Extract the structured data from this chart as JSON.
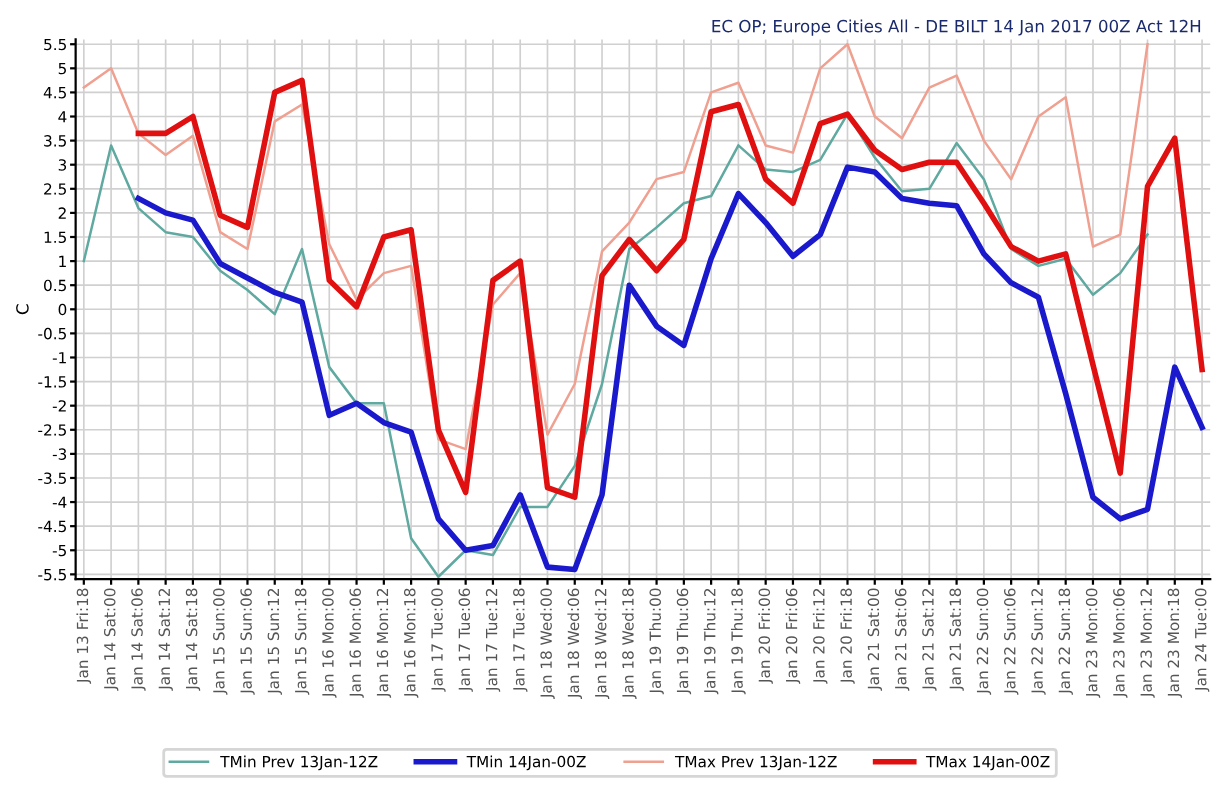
{
  "chart_data": {
    "type": "line",
    "title": "EC OP; Europe Cities All - DE BILT 14 Jan 2017 00Z Act 12H",
    "ylabel": "C",
    "categories": [
      "Jan 13 Fri:18",
      "Jan 14 Sat:00",
      "Jan 14 Sat:06",
      "Jan 14 Sat:12",
      "Jan 14 Sat:18",
      "Jan 15 Sun:00",
      "Jan 15 Sun:06",
      "Jan 15 Sun:12",
      "Jan 15 Sun:18",
      "Jan 16 Mon:00",
      "Jan 16 Mon:06",
      "Jan 16 Mon:12",
      "Jan 16 Mon:18",
      "Jan 17 Tue:00",
      "Jan 17 Tue:06",
      "Jan 17 Tue:12",
      "Jan 17 Tue:18",
      "Jan 18 Wed:00",
      "Jan 18 Wed:06",
      "Jan 18 Wed:12",
      "Jan 18 Wed:18",
      "Jan 19 Thu:00",
      "Jan 19 Thu:06",
      "Jan 19 Thu:12",
      "Jan 19 Thu:18",
      "Jan 20 Fri:00",
      "Jan 20 Fri:06",
      "Jan 20 Fri:12",
      "Jan 20 Fri:18",
      "Jan 21 Sat:00",
      "Jan 21 Sat:06",
      "Jan 21 Sat:12",
      "Jan 21 Sat:18",
      "Jan 22 Sun:00",
      "Jan 22 Sun:06",
      "Jan 22 Sun:12",
      "Jan 22 Sun:18",
      "Jan 23 Mon:00",
      "Jan 23 Mon:06",
      "Jan 23 Mon:12",
      "Jan 23 Mon:18",
      "Jan 24 Tue:00"
    ],
    "series": [
      {
        "name": "TMin Prev 13Jan-12Z",
        "color": "#5fa9a0",
        "values": [
          1.0,
          3.4,
          2.1,
          1.6,
          1.5,
          0.8,
          0.4,
          -0.1,
          1.25,
          -1.2,
          -1.95,
          -1.95,
          -4.75,
          -5.55,
          -5.0,
          -5.1,
          -4.1,
          -4.1,
          -3.25,
          -1.55,
          1.25,
          1.7,
          2.2,
          2.35,
          3.4,
          2.9,
          2.85,
          3.1,
          4.05,
          3.15,
          2.45,
          2.5,
          3.45,
          2.7,
          1.25,
          0.9,
          1.05,
          0.3,
          0.75,
          1.55,
          null,
          null
        ]
      },
      {
        "name": "TMin 14Jan-00Z",
        "color": "#1a1acc",
        "values": [
          null,
          null,
          2.3,
          2.0,
          1.85,
          0.95,
          0.65,
          0.35,
          0.15,
          -2.2,
          -1.95,
          -2.35,
          -2.55,
          -4.35,
          -5.0,
          -4.9,
          -3.85,
          -5.35,
          -5.4,
          -3.85,
          0.5,
          -0.35,
          -0.75,
          1.05,
          2.4,
          1.8,
          1.1,
          1.55,
          2.95,
          2.85,
          2.3,
          2.2,
          2.15,
          1.15,
          0.55,
          0.25,
          -1.75,
          -3.9,
          -4.35,
          -4.15,
          -1.2,
          -2.45
        ]
      },
      {
        "name": "TMax Prev 13Jan-12Z",
        "color": "#f0a090",
        "values": [
          4.6,
          5.0,
          3.65,
          3.2,
          3.6,
          1.6,
          1.25,
          3.9,
          4.25,
          1.35,
          0.2,
          0.75,
          0.9,
          -2.7,
          -2.9,
          0.1,
          0.75,
          -2.6,
          -1.55,
          1.2,
          1.8,
          2.7,
          2.85,
          4.5,
          4.7,
          3.4,
          3.25,
          5.0,
          5.5,
          4.0,
          3.55,
          4.6,
          4.85,
          3.5,
          2.7,
          4.0,
          4.4,
          1.3,
          1.55,
          5.5,
          null,
          null
        ]
      },
      {
        "name": "TMax 14Jan-00Z",
        "color": "#e01010",
        "values": [
          null,
          null,
          3.65,
          3.65,
          4.0,
          1.95,
          1.7,
          4.5,
          4.75,
          0.6,
          0.05,
          1.5,
          1.65,
          -2.5,
          -3.8,
          0.6,
          1.0,
          -3.7,
          -3.9,
          0.7,
          1.45,
          0.8,
          1.45,
          4.1,
          4.25,
          2.7,
          2.2,
          3.85,
          4.05,
          3.3,
          2.9,
          3.05,
          3.05,
          2.2,
          1.3,
          1.0,
          1.15,
          -1.15,
          -3.4,
          2.55,
          3.55,
          -1.25
        ]
      }
    ],
    "ylim": [
      -5.6,
      5.6
    ],
    "yticks": [
      -5.5,
      -5,
      -4.5,
      -4,
      -3.5,
      -3,
      -2.5,
      -2,
      -1.5,
      -1,
      -0.5,
      0,
      0.5,
      1,
      1.5,
      2,
      2.5,
      3,
      3.5,
      4,
      4.5,
      5,
      5.5
    ],
    "grid": true,
    "legend": "bottom",
    "marker": "none",
    "line_style": "solid"
  }
}
